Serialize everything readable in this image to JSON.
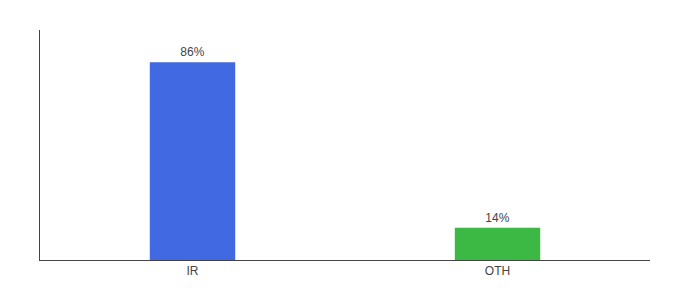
{
  "chart_data": {
    "type": "bar",
    "categories": [
      "IR",
      "OTH"
    ],
    "values": [
      86,
      14
    ],
    "value_labels": [
      "86%",
      "14%"
    ],
    "colors": [
      "#4169E1",
      "#3CB944"
    ],
    "ylim": [
      0,
      100
    ],
    "grid": false,
    "data_labels": true,
    "tick_labels": "x"
  }
}
